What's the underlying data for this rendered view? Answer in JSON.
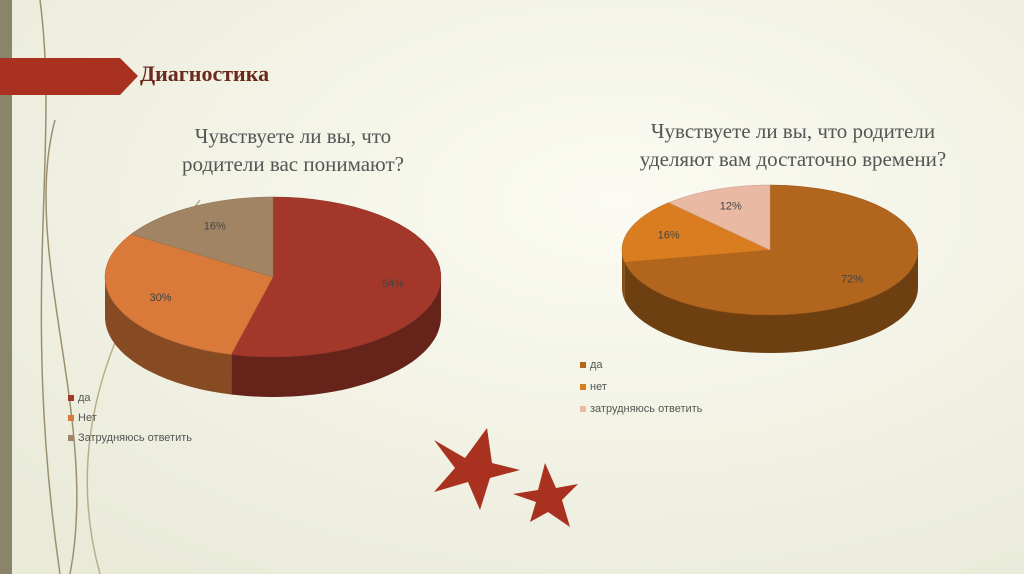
{
  "header": {
    "title": "Диагностика"
  },
  "chart_data": [
    {
      "type": "pie",
      "title": [
        "Чувствуете ли вы, что",
        "родители вас понимают?"
      ],
      "categories": [
        "да",
        "Нет",
        "Затрудняюсь ответить"
      ],
      "values": [
        54,
        30,
        16
      ],
      "value_labels": [
        "54%",
        "30%",
        "16%"
      ],
      "colors": [
        "#a3382a",
        "#d9793a",
        "#a18463"
      ]
    },
    {
      "type": "pie",
      "title": [
        "Чувствуете ли вы, что родители",
        "уделяют вам достаточно времени?"
      ],
      "categories": [
        "да",
        "нет",
        "затрудняюсь ответить"
      ],
      "values": [
        72,
        16,
        12
      ],
      "value_labels": [
        "72%",
        "16%",
        "12%"
      ],
      "colors": [
        "#b2651c",
        "#d97d20",
        "#e9b9a4"
      ]
    }
  ]
}
